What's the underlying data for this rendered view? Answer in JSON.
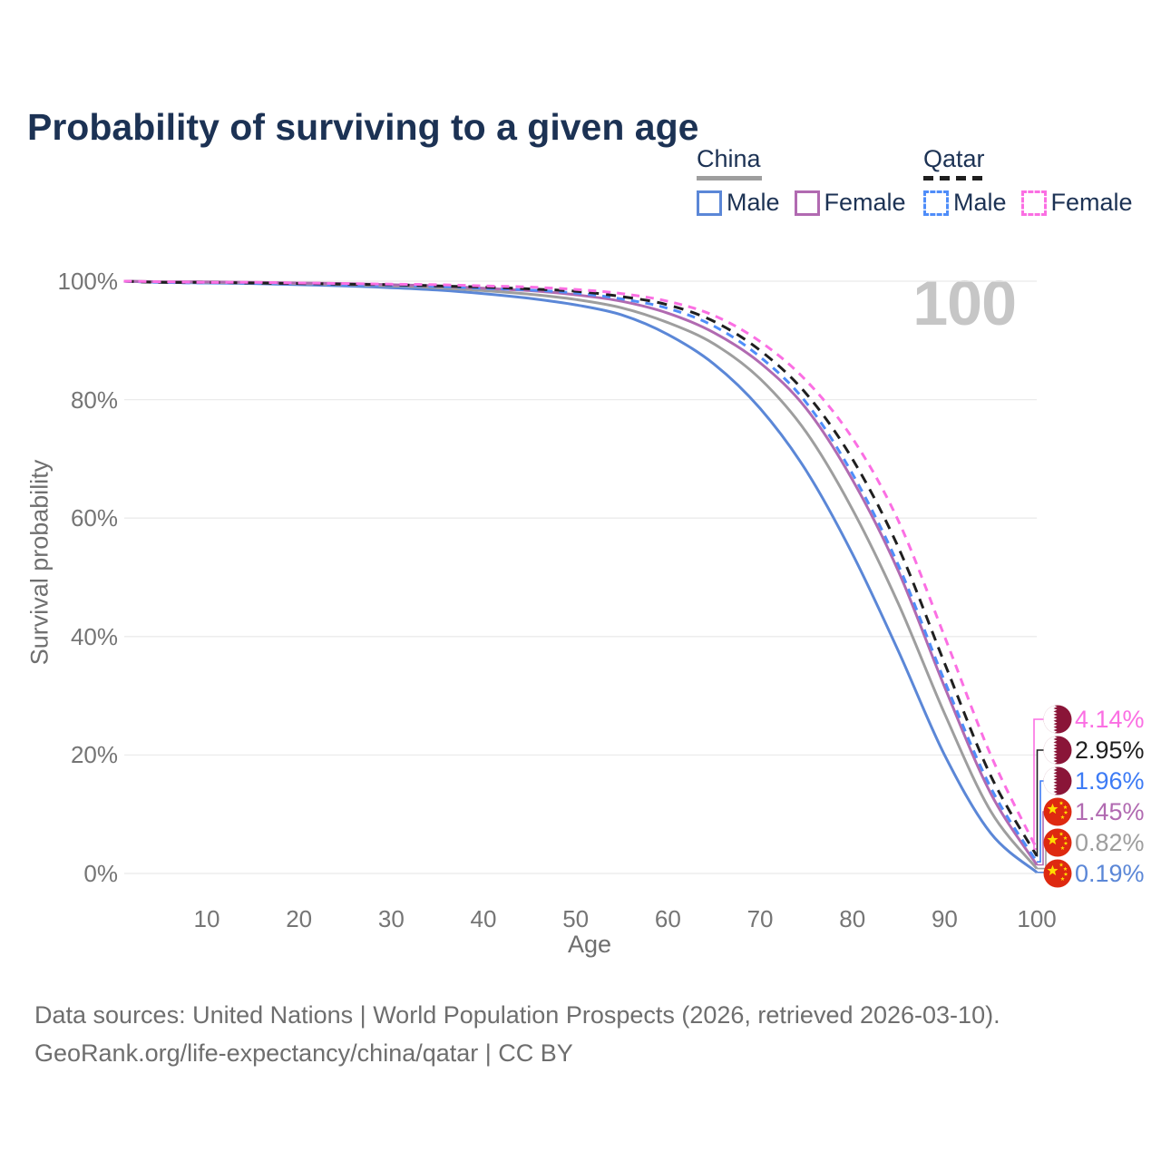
{
  "title": "Probability of surviving to a given age",
  "age_counter": "100",
  "legend": {
    "groups": [
      {
        "label": "China",
        "line_style": "solid",
        "underline_color": "#9e9e9e",
        "items": [
          {
            "label": "Male",
            "color": "#5b87d7"
          },
          {
            "label": "Female",
            "color": "#b16ab1"
          }
        ]
      },
      {
        "label": "Qatar",
        "line_style": "dashed",
        "underline_color": "#1f1f1f",
        "items": [
          {
            "label": "Male",
            "color": "#4f8df9"
          },
          {
            "label": "Female",
            "color": "#fb6fe3"
          }
        ]
      }
    ]
  },
  "axes": {
    "x_label": "Age",
    "y_label": "Survival probability",
    "x_ticks": [
      10,
      20,
      30,
      40,
      50,
      60,
      70,
      80,
      90,
      100
    ],
    "y_ticks": [
      {
        "value": 0,
        "label": "0%"
      },
      {
        "value": 20,
        "label": "20%"
      },
      {
        "value": 40,
        "label": "40%"
      },
      {
        "value": 60,
        "label": "60%"
      },
      {
        "value": 80,
        "label": "80%"
      },
      {
        "value": 100,
        "label": "100%"
      }
    ]
  },
  "endpoints": [
    {
      "series": "qatar_female",
      "flag": "qatar",
      "value": "4.14%",
      "p": 4.14,
      "color": "#fb6fe3"
    },
    {
      "series": "qatar_total",
      "flag": "qatar",
      "value": "2.95%",
      "p": 2.95,
      "color": "#1f1f1f"
    },
    {
      "series": "qatar_male",
      "flag": "qatar",
      "value": "1.96%",
      "p": 1.96,
      "color": "#3d7bf5"
    },
    {
      "series": "china_female",
      "flag": "china",
      "value": "1.45%",
      "p": 1.45,
      "color": "#b16ab1"
    },
    {
      "series": "china_total",
      "flag": "china",
      "value": "0.82%",
      "p": 0.82,
      "color": "#9e9e9e"
    },
    {
      "series": "china_male",
      "flag": "china",
      "value": "0.19%",
      "p": 0.19,
      "color": "#5b87d7"
    }
  ],
  "footer": {
    "line1": "Data sources: United Nations | World Population Prospects (2026, retrieved 2026-03-10).",
    "line2": "GeoRank.org/life-expectancy/china/qatar | CC BY"
  },
  "chart_data": {
    "type": "line",
    "title": "Probability of surviving to a given age",
    "xlabel": "Age",
    "ylabel": "Survival probability",
    "xlim": [
      1,
      100
    ],
    "ylim": [
      0,
      100
    ],
    "grid": "horizontal",
    "legend_position": "top-right",
    "x": [
      1,
      5,
      10,
      15,
      20,
      25,
      30,
      35,
      40,
      45,
      50,
      55,
      60,
      65,
      70,
      75,
      80,
      85,
      90,
      95,
      100
    ],
    "series": [
      {
        "id": "china_male",
        "name": "China Male",
        "country": "China",
        "sex": "Male",
        "color": "#5b87d7",
        "dash": null,
        "end_label": "0.19%",
        "values": [
          100,
          99.8,
          99.7,
          99.6,
          99.4,
          99.2,
          98.9,
          98.5,
          97.9,
          97.1,
          96.0,
          94.3,
          91.0,
          86.0,
          78.5,
          68.0,
          54.0,
          37.5,
          20.0,
          6.8,
          0.19
        ]
      },
      {
        "id": "china_total",
        "name": "China Both sexes",
        "country": "China",
        "sex": "Both",
        "color": "#9e9e9e",
        "dash": null,
        "end_label": "0.82%",
        "values": [
          100,
          99.9,
          99.8,
          99.7,
          99.6,
          99.4,
          99.2,
          98.9,
          98.4,
          97.8,
          96.9,
          95.5,
          93.0,
          89.4,
          83.5,
          74.5,
          61.5,
          45.5,
          27.0,
          10.5,
          0.82
        ]
      },
      {
        "id": "china_female",
        "name": "China Female",
        "country": "China",
        "sex": "Female",
        "color": "#b16ab1",
        "dash": null,
        "end_label": "1.45%",
        "values": [
          100,
          99.9,
          99.9,
          99.8,
          99.7,
          99.6,
          99.4,
          99.2,
          98.8,
          98.4,
          97.7,
          96.6,
          94.6,
          91.3,
          86.2,
          78.5,
          66.5,
          51.0,
          31.5,
          13.5,
          1.45
        ]
      },
      {
        "id": "qatar_male",
        "name": "Qatar Male",
        "country": "Qatar",
        "sex": "Male",
        "color": "#4f8df9",
        "dash": "9 7",
        "end_label": "1.96%",
        "values": [
          100,
          99.8,
          99.7,
          99.7,
          99.6,
          99.4,
          99.3,
          99.1,
          98.8,
          98.5,
          98.0,
          97.0,
          95.4,
          92.4,
          87.2,
          79.5,
          67.5,
          52.0,
          32.5,
          14.5,
          1.96
        ]
      },
      {
        "id": "qatar_total",
        "name": "Qatar Both sexes",
        "country": "Qatar",
        "sex": "Both",
        "color": "#1f1f1f",
        "dash": "11 8",
        "end_label": "2.95%",
        "values": [
          100,
          99.8,
          99.8,
          99.7,
          99.6,
          99.5,
          99.4,
          99.2,
          99.0,
          98.7,
          98.3,
          97.4,
          96.0,
          93.2,
          88.3,
          81.0,
          70.0,
          55.0,
          35.5,
          16.5,
          2.95
        ]
      },
      {
        "id": "qatar_female",
        "name": "Qatar Female",
        "country": "Qatar",
        "sex": "Female",
        "color": "#fb6fe3",
        "dash": "9 7",
        "end_label": "4.14%",
        "values": [
          100,
          99.9,
          99.8,
          99.8,
          99.7,
          99.6,
          99.5,
          99.4,
          99.2,
          99.0,
          98.6,
          97.9,
          96.6,
          94.2,
          89.8,
          83.2,
          73.5,
          59.5,
          40.0,
          20.0,
          4.14
        ]
      }
    ]
  }
}
